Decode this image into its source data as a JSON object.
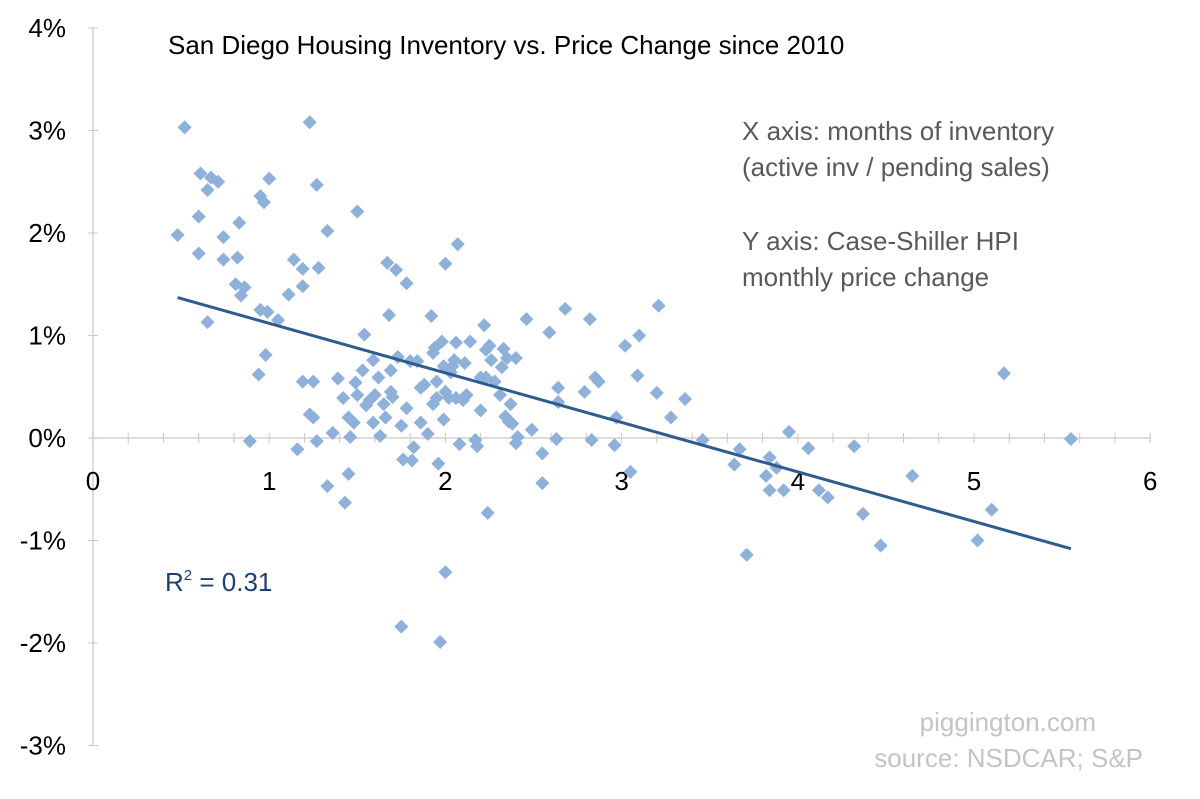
{
  "chart_data": {
    "type": "scatter",
    "title": "San Diego Housing Inventory vs.  Price Change since 2010",
    "xlabel": "",
    "ylabel": "",
    "xlim": [
      0,
      6
    ],
    "ylim": [
      -3,
      4
    ],
    "x_ticks": [
      "0",
      "1",
      "2",
      "3",
      "4",
      "5",
      "6"
    ],
    "y_ticks": [
      "4%",
      "3%",
      "2%",
      "1%",
      "0%",
      "-1%",
      "-2%",
      "-3%"
    ],
    "annotations": {
      "x_axis_line1": "X axis: months of inventory",
      "x_axis_line2": "(active inv / pending sales)",
      "y_axis_line1": "Y axis: Case-Shiller HPI",
      "y_axis_line2": "monthly price change",
      "r_squared_label": "R",
      "r_squared_sup": "2",
      "r_squared_value": " = 0.31",
      "watermark_line1": "piggington.com",
      "watermark_line2": "source: NSDCAR; S&P"
    },
    "marker_color": "#8eb0d9",
    "trendline_color": "#2f5b8f",
    "trendline": {
      "x": [
        0.48,
        5.55
      ],
      "y": [
        1.37,
        -1.08
      ]
    },
    "points": [
      [
        0.48,
        1.98
      ],
      [
        0.52,
        3.03
      ],
      [
        0.61,
        2.58
      ],
      [
        0.6,
        2.16
      ],
      [
        0.6,
        1.8
      ],
      [
        0.65,
        1.13
      ],
      [
        0.65,
        2.42
      ],
      [
        0.67,
        2.54
      ],
      [
        0.71,
        2.5
      ],
      [
        0.74,
        1.96
      ],
      [
        0.74,
        1.74
      ],
      [
        0.81,
        1.5
      ],
      [
        0.82,
        1.76
      ],
      [
        0.83,
        2.1
      ],
      [
        0.84,
        1.39
      ],
      [
        0.86,
        1.47
      ],
      [
        0.89,
        -0.03
      ],
      [
        0.94,
        0.62
      ],
      [
        0.95,
        2.36
      ],
      [
        0.97,
        2.3
      ],
      [
        0.98,
        0.81
      ],
      [
        0.95,
        1.25
      ],
      [
        0.99,
        1.23
      ],
      [
        1.0,
        2.53
      ],
      [
        1.05,
        1.15
      ],
      [
        1.11,
        1.4
      ],
      [
        1.14,
        1.74
      ],
      [
        1.16,
        -0.11
      ],
      [
        1.19,
        1.48
      ],
      [
        1.19,
        1.65
      ],
      [
        1.19,
        0.55
      ],
      [
        1.23,
        3.08
      ],
      [
        1.23,
        0.23
      ],
      [
        1.25,
        0.2
      ],
      [
        1.25,
        0.55
      ],
      [
        1.27,
        -0.03
      ],
      [
        1.28,
        1.66
      ],
      [
        1.27,
        2.47
      ],
      [
        1.33,
        2.02
      ],
      [
        1.33,
        -0.47
      ],
      [
        1.39,
        0.58
      ],
      [
        1.42,
        0.39
      ],
      [
        1.43,
        -0.63
      ],
      [
        1.45,
        0.2
      ],
      [
        1.45,
        -0.35
      ],
      [
        1.46,
        0.01
      ],
      [
        1.49,
        0.54
      ],
      [
        1.5,
        2.21
      ],
      [
        1.5,
        0.42
      ],
      [
        1.48,
        0.15
      ],
      [
        1.53,
        0.66
      ],
      [
        1.54,
        1.01
      ],
      [
        1.57,
        0.37
      ],
      [
        1.59,
        0.76
      ],
      [
        1.59,
        0.15
      ],
      [
        1.62,
        0.59
      ],
      [
        1.63,
        0.02
      ],
      [
        1.65,
        0.33
      ],
      [
        1.66,
        0.2
      ],
      [
        1.67,
        1.71
      ],
      [
        1.68,
        1.2
      ],
      [
        1.69,
        0.66
      ],
      [
        1.69,
        0.45
      ],
      [
        1.72,
        1.64
      ],
      [
        1.73,
        0.79
      ],
      [
        1.76,
        -0.21
      ],
      [
        1.75,
        -1.84
      ],
      [
        1.78,
        1.51
      ],
      [
        1.78,
        0.29
      ],
      [
        1.8,
        0.75
      ],
      [
        1.81,
        -0.22
      ],
      [
        1.82,
        -0.09
      ],
      [
        1.84,
        0.75
      ],
      [
        1.86,
        0.49
      ],
      [
        1.86,
        0.15
      ],
      [
        1.9,
        0.04
      ],
      [
        1.92,
        1.19
      ],
      [
        1.93,
        0.83
      ],
      [
        1.93,
        0.33
      ],
      [
        1.94,
        0.88
      ],
      [
        1.95,
        0.55
      ],
      [
        1.95,
        0.39
      ],
      [
        1.96,
        -0.25
      ],
      [
        1.97,
        -1.99
      ],
      [
        1.98,
        0.94
      ],
      [
        1.99,
        0.18
      ],
      [
        1.99,
        0.7
      ],
      [
        2.0,
        -1.31
      ],
      [
        2.0,
        1.7
      ],
      [
        2.02,
        0.39
      ],
      [
        2.02,
        0.66
      ],
      [
        2.03,
        0.64
      ],
      [
        2.06,
        0.39
      ],
      [
        2.06,
        0.93
      ],
      [
        2.05,
        0.76
      ],
      [
        2.07,
        1.89
      ],
      [
        2.08,
        -0.06
      ],
      [
        2.1,
        0.37
      ],
      [
        2.11,
        0.73
      ],
      [
        2.14,
        0.94
      ],
      [
        2.17,
        -0.02
      ],
      [
        2.18,
        -0.08
      ],
      [
        2.2,
        0.27
      ],
      [
        2.2,
        0.59
      ],
      [
        2.23,
        0.59
      ],
      [
        2.23,
        0.86
      ],
      [
        2.22,
        1.1
      ],
      [
        2.24,
        -0.73
      ],
      [
        2.25,
        0.9
      ],
      [
        2.26,
        0.76
      ],
      [
        2.28,
        0.55
      ],
      [
        2.31,
        0.42
      ],
      [
        2.32,
        0.69
      ],
      [
        2.33,
        0.87
      ],
      [
        2.34,
        0.21
      ],
      [
        2.35,
        0.78
      ],
      [
        2.36,
        0.16
      ],
      [
        2.37,
        0.33
      ],
      [
        2.4,
        0.78
      ],
      [
        2.4,
        -0.05
      ],
      [
        2.41,
        0.01
      ],
      [
        2.46,
        1.16
      ],
      [
        2.49,
        0.08
      ],
      [
        2.55,
        -0.15
      ],
      [
        2.55,
        -0.44
      ],
      [
        2.59,
        1.03
      ],
      [
        2.63,
        -0.01
      ],
      [
        2.64,
        0.35
      ],
      [
        2.64,
        0.49
      ],
      [
        2.68,
        1.26
      ],
      [
        2.79,
        0.45
      ],
      [
        2.82,
        1.16
      ],
      [
        2.83,
        -0.02
      ],
      [
        2.85,
        0.59
      ],
      [
        2.87,
        0.55
      ],
      [
        2.96,
        -0.07
      ],
      [
        2.97,
        0.2
      ],
      [
        3.02,
        0.9
      ],
      [
        3.05,
        -0.33
      ],
      [
        3.09,
        0.61
      ],
      [
        3.1,
        1.0
      ],
      [
        3.2,
        0.44
      ],
      [
        3.21,
        1.29
      ],
      [
        3.28,
        0.2
      ],
      [
        3.36,
        0.38
      ],
      [
        3.46,
        -0.02
      ],
      [
        3.64,
        -0.26
      ],
      [
        3.67,
        -0.11
      ],
      [
        3.71,
        -1.14
      ],
      [
        3.82,
        -0.37
      ],
      [
        3.84,
        -0.19
      ],
      [
        3.84,
        -0.51
      ],
      [
        3.88,
        -0.29
      ],
      [
        3.92,
        -0.51
      ],
      [
        3.95,
        0.06
      ],
      [
        4.06,
        -0.1
      ],
      [
        4.12,
        -0.51
      ],
      [
        4.17,
        -0.58
      ],
      [
        4.32,
        -0.08
      ],
      [
        4.37,
        -0.74
      ],
      [
        4.47,
        -1.05
      ],
      [
        4.65,
        -0.37
      ],
      [
        5.02,
        -1.0
      ],
      [
        5.1,
        -0.7
      ],
      [
        5.17,
        0.63
      ],
      [
        5.55,
        -0.01
      ],
      [
        1.7,
        0.4
      ],
      [
        1.88,
        0.52
      ],
      [
        2.0,
        0.45
      ],
      [
        2.04,
        0.7
      ],
      [
        2.12,
        0.42
      ],
      [
        1.6,
        0.42
      ],
      [
        1.75,
        0.12
      ],
      [
        2.38,
        0.14
      ],
      [
        1.36,
        0.05
      ],
      [
        1.55,
        0.32
      ]
    ]
  }
}
